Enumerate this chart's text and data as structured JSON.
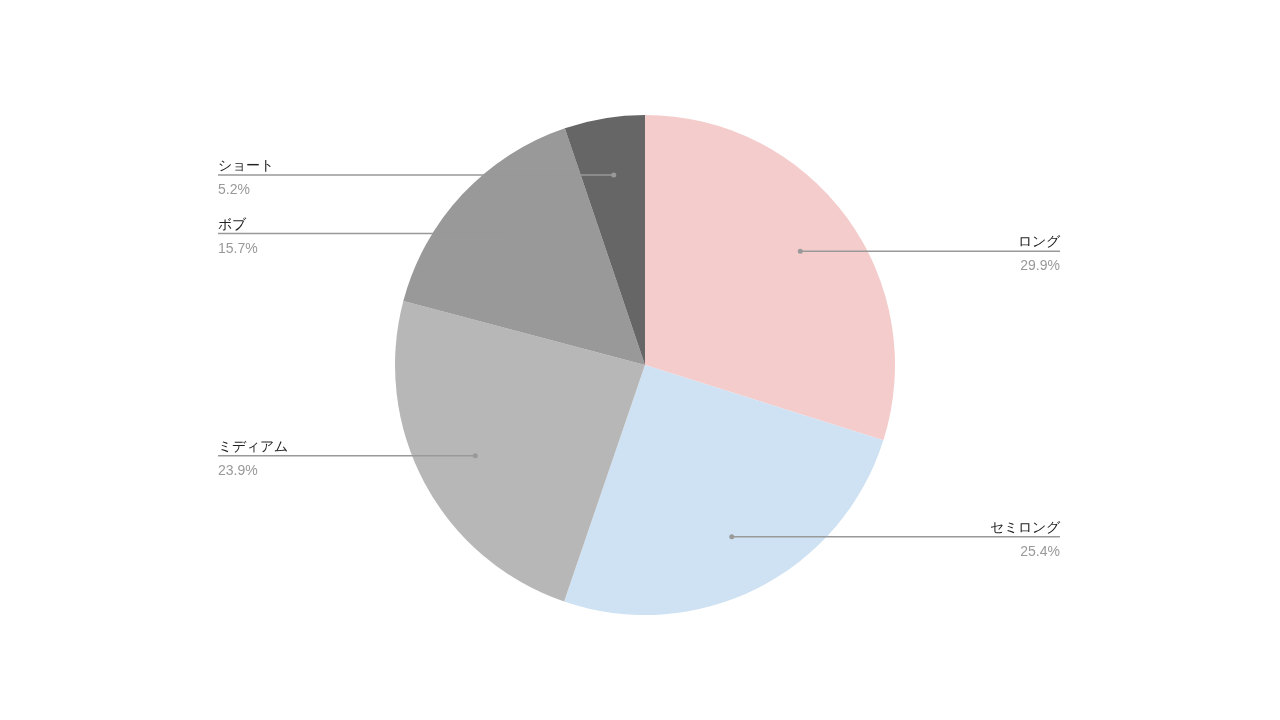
{
  "chart_data": {
    "type": "pie",
    "categories": [
      "ロング",
      "セミロング",
      "ミディアム",
      "ボブ",
      "ショート"
    ],
    "values": [
      29.9,
      25.4,
      23.9,
      15.7,
      5.2
    ],
    "colors": [
      "#f4cccc",
      "#cfe2f3",
      "#b7b7b7",
      "#999999",
      "#666666"
    ],
    "value_labels": [
      "29.9%",
      "25.4%",
      "23.9%",
      "15.7%",
      "5.2%"
    ]
  }
}
